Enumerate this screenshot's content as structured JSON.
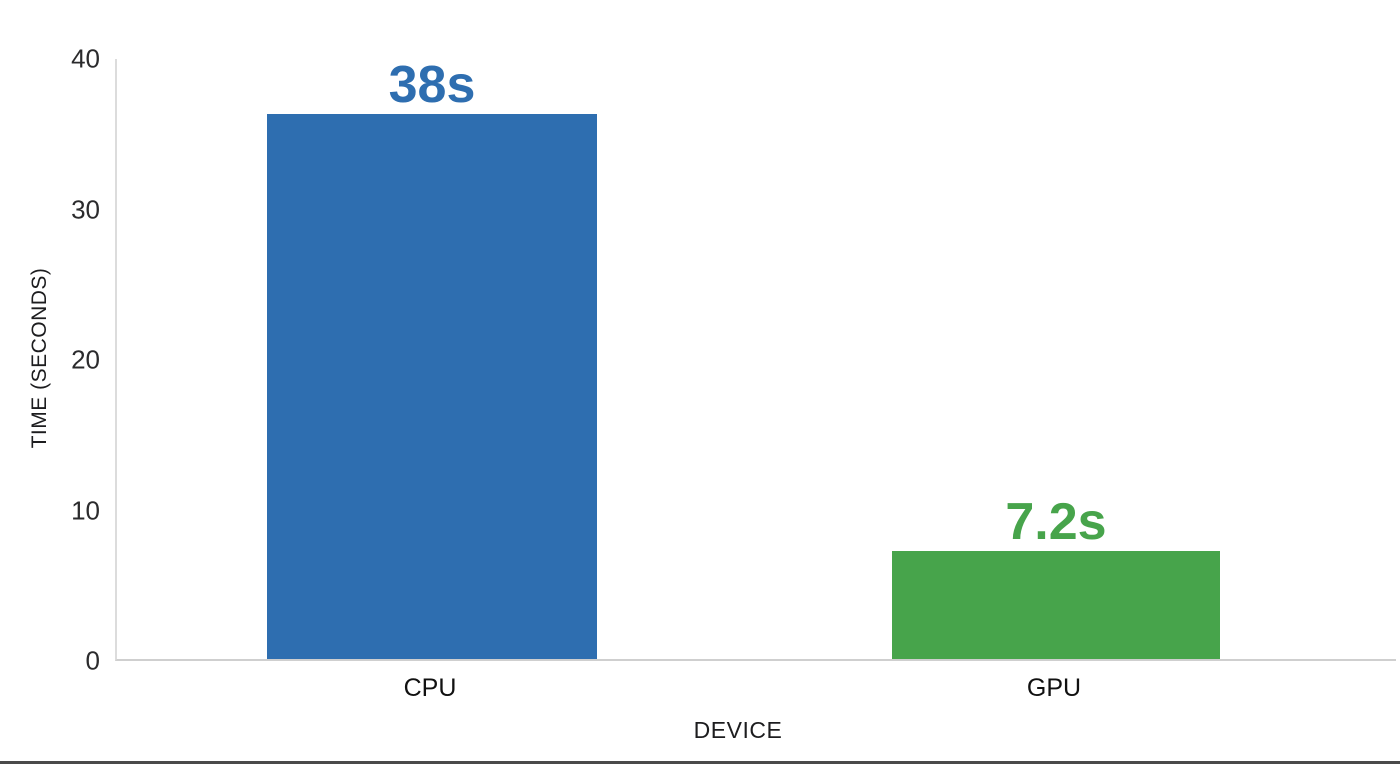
{
  "chart_data": {
    "type": "bar",
    "title": "",
    "categories": [
      "CPU",
      "GPU"
    ],
    "values": [
      38,
      7.2
    ],
    "value_labels": [
      "38s",
      "7.2s"
    ],
    "bar_colors": [
      "#2e6eb0",
      "#47a44b"
    ],
    "xlabel": "DEVICE",
    "ylabel": "TIME (SECONDS)",
    "yticks": [
      40,
      30,
      20,
      10,
      0
    ],
    "ylim": [
      0,
      40
    ],
    "grid": false,
    "legend": false
  }
}
